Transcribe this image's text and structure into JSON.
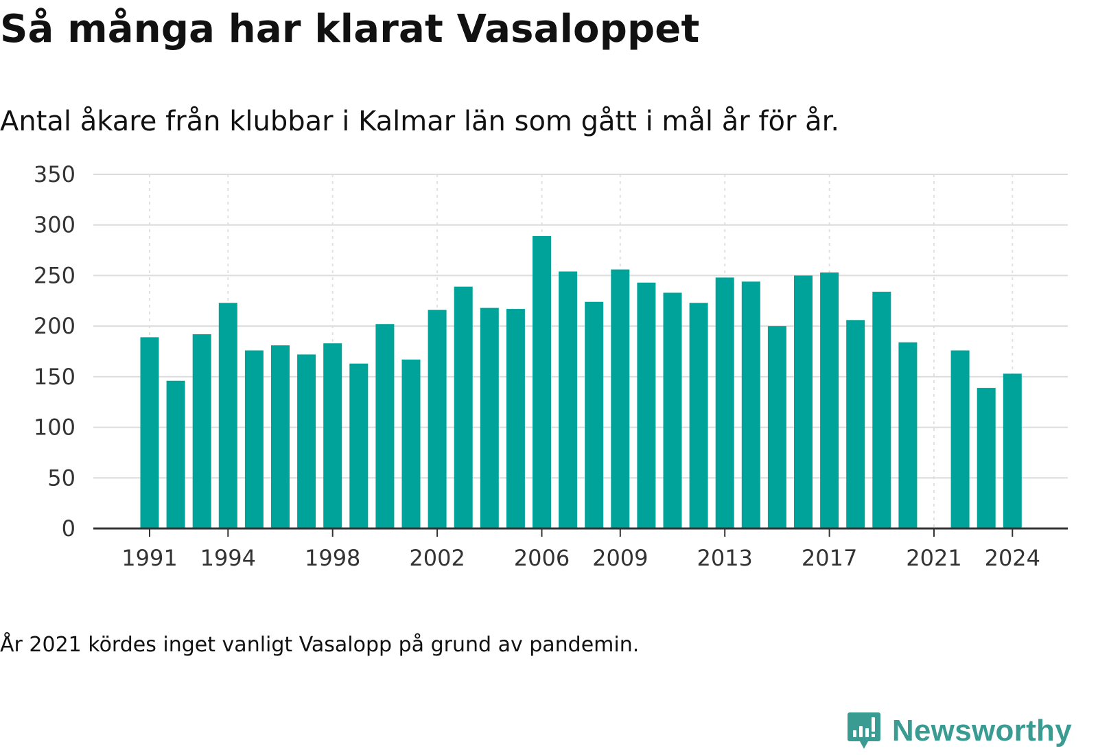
{
  "header": {
    "title": "Så många har klarat Vasaloppet",
    "subtitle": "Antal åkare från klubbar i Kalmar län som gått i mål år för år."
  },
  "chart_data": {
    "type": "bar",
    "categories": [
      1991,
      1992,
      1993,
      1994,
      1995,
      1996,
      1997,
      1998,
      1999,
      2000,
      2001,
      2002,
      2003,
      2004,
      2005,
      2006,
      2007,
      2008,
      2009,
      2010,
      2011,
      2012,
      2013,
      2014,
      2015,
      2016,
      2017,
      2018,
      2019,
      2020,
      2021,
      2022,
      2023,
      2024
    ],
    "values": [
      189,
      146,
      192,
      223,
      176,
      181,
      172,
      183,
      163,
      202,
      167,
      216,
      239,
      218,
      217,
      289,
      254,
      224,
      256,
      243,
      233,
      223,
      248,
      244,
      200,
      250,
      253,
      206,
      234,
      184,
      null,
      176,
      139,
      153
    ],
    "x_tick_labels": [
      "1991",
      "1994",
      "1998",
      "2002",
      "2006",
      "2009",
      "2013",
      "2017",
      "2021",
      "2024"
    ],
    "y_ticks": [
      0,
      50,
      100,
      150,
      200,
      250,
      300,
      350
    ],
    "ylim": [
      0,
      350
    ],
    "bar_color": "#00a39a",
    "grid": true,
    "xlabel": "",
    "ylabel": ""
  },
  "footer": {
    "note": "År 2021 kördes inget vanligt Vasalopp på grund av pandemin.",
    "brand": "Newsworthy",
    "brand_color": "#3a9b92",
    "brand_icon": "bar-chart-speech-bubble-icon"
  }
}
